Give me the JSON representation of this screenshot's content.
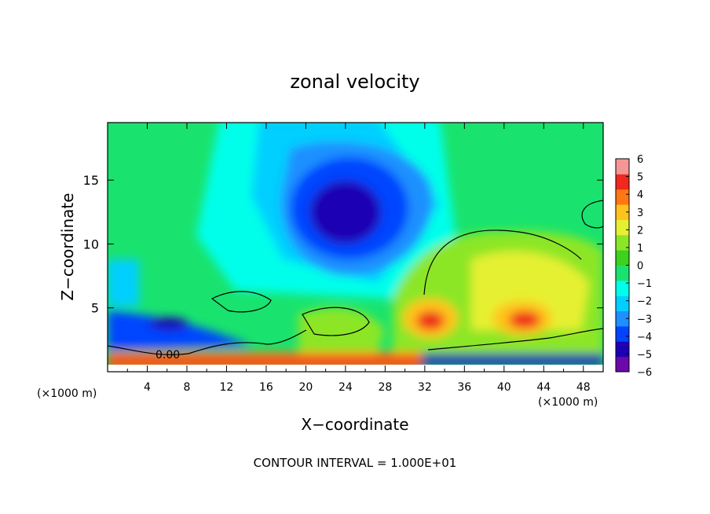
{
  "chart_data": {
    "type": "heatmap",
    "title": "zonal velocity",
    "xlabel": "X−coordinate",
    "ylabel": "Z−coordinate",
    "x_unit_left": "(×1000 m)",
    "x_unit_right": "(×1000 m)",
    "xlim": [
      0,
      50
    ],
    "ylim": [
      0,
      19.5
    ],
    "x_ticks": [
      4,
      8,
      12,
      16,
      20,
      24,
      28,
      32,
      36,
      40,
      44,
      48
    ],
    "y_ticks": [
      5,
      10,
      15
    ],
    "footer": "CONTOUR INTERVAL =  1.000E+01",
    "contour_label": "0.00",
    "colorbar": {
      "min": -6,
      "max": 6,
      "ticks": [
        6,
        5,
        4,
        3,
        2,
        1,
        0,
        -1,
        -2,
        -3,
        -4,
        -5,
        -6
      ],
      "tick_labels": [
        "6",
        "5",
        "4",
        "3",
        "2",
        "1",
        "0",
        "−1",
        "−2",
        "−3",
        "−4",
        "−5",
        "−6"
      ],
      "colors": [
        "#6a0aa8",
        "#1e00b4",
        "#0044ff",
        "#1e90ff",
        "#00cfff",
        "#00ffea",
        "#19e36e",
        "#3cd21e",
        "#8ce628",
        "#e6f032",
        "#ffc31e",
        "#ff7814",
        "#f0281e",
        "#f59696"
      ]
    },
    "features": [
      {
        "type": "minimum",
        "x": 24,
        "z": 12.5,
        "value": -5.5
      },
      {
        "type": "maximum",
        "x": 34,
        "z": 4.2,
        "value": 4.5
      },
      {
        "type": "maximum",
        "x": 41.5,
        "z": 4.2,
        "value": 4.0
      },
      {
        "type": "maximum_band",
        "z": 0.7,
        "value": 5.0
      },
      {
        "type": "minimum_band",
        "z": 2.5,
        "value": -4.0
      }
    ]
  }
}
